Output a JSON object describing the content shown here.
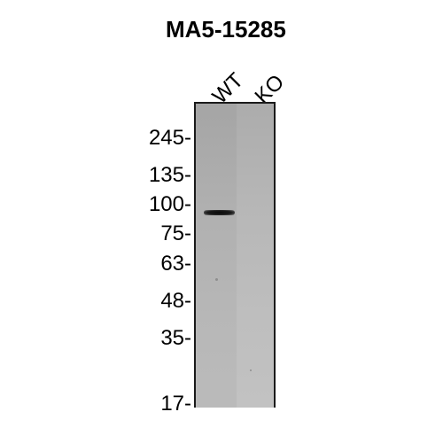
{
  "title": "MA5-15285",
  "lanes": [
    "WT",
    "KO"
  ],
  "markers": [
    "245-",
    "135-",
    "100-",
    "75-",
    "63-",
    "48-",
    "35-",
    "17-"
  ]
}
